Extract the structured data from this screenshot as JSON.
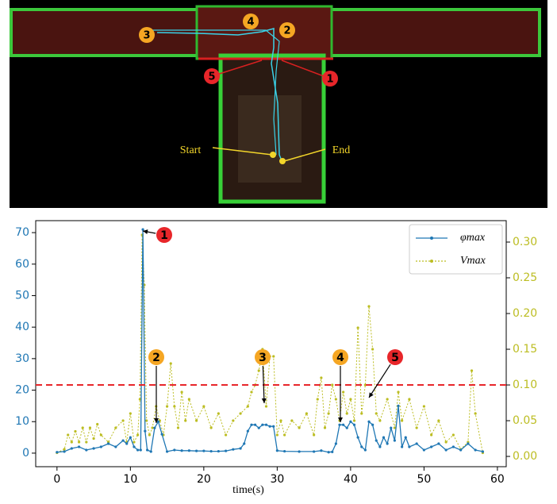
{
  "map": {
    "start_label": "Start",
    "end_label": "End",
    "markers": [
      "1",
      "2",
      "3",
      "4",
      "5"
    ]
  },
  "chart_data": {
    "type": "line",
    "x_label": "time(s)",
    "xlim": [
      -2.9,
      61.2
    ],
    "xticks": [
      0,
      10,
      20,
      30,
      40,
      50,
      60
    ],
    "ylim": [
      -4.3,
      73.8
    ],
    "yticks": [
      0,
      10,
      20,
      30,
      40,
      50,
      60,
      70
    ],
    "y2lim": [
      -0.0144,
      0.33
    ],
    "y2ticks": [
      {
        "value": 0,
        "label": "0.00"
      },
      0.05,
      {
        "value": 0.1,
        "label": "0.10"
      },
      0.15,
      {
        "value": 0.2,
        "label": "0.20"
      },
      0.25,
      {
        "value": 0.3,
        "label": "0.30"
      }
    ],
    "legend": "upper right",
    "threshold": {
      "value": 0.1,
      "axis": "y2",
      "color": "#e8262a"
    },
    "annotations": [
      "1",
      "2",
      "3",
      "4",
      "5"
    ],
    "series": [
      {
        "name": "φmax",
        "color": "#1f77b4",
        "axis": "y",
        "x": [
          0,
          1,
          2,
          3,
          4,
          5,
          6,
          7,
          8,
          9,
          9.5,
          10,
          10.5,
          11,
          11.4,
          11.7,
          12,
          12.3,
          12.8,
          13.3,
          13.8,
          14.3,
          15,
          16,
          17,
          18,
          19,
          20,
          21,
          22,
          23,
          24,
          25,
          25.5,
          26,
          26.5,
          27,
          27.5,
          28,
          28.5,
          29,
          29.5,
          30,
          31,
          33,
          35,
          36,
          37,
          37.5,
          38,
          38.5,
          39,
          39.5,
          40,
          40.5,
          41,
          41.5,
          42,
          42.5,
          43,
          43.5,
          44,
          44.5,
          45,
          45.5,
          46,
          46.5,
          47,
          47.5,
          48,
          49,
          50,
          51,
          52,
          53,
          54,
          55,
          56,
          57,
          58
        ],
        "values": [
          0.3,
          0.5,
          1.5,
          2,
          1,
          1.5,
          2,
          3,
          2,
          4,
          3,
          5,
          2,
          1,
          1,
          71,
          7,
          1,
          0.5,
          8,
          10,
          6,
          0.5,
          1,
          0.8,
          0.8,
          0.7,
          0.7,
          0.6,
          0.6,
          0.7,
          1.2,
          1.5,
          3,
          7,
          9,
          9,
          8,
          9,
          9,
          8.5,
          8.5,
          0.8,
          0.6,
          0.5,
          0.5,
          0.8,
          0.3,
          0.4,
          3,
          9,
          9,
          8,
          10,
          9,
          5,
          2,
          1,
          10,
          9,
          4,
          2,
          5,
          3,
          8,
          4,
          15,
          2,
          5,
          2,
          3,
          1,
          2,
          3,
          1,
          2,
          1,
          3,
          1,
          0.5
        ]
      },
      {
        "name": "Vmax",
        "color": "#bcbd22",
        "axis": "y2",
        "x": [
          0,
          1,
          1.5,
          2,
          2.5,
          3,
          3.5,
          4,
          4.5,
          5,
          5.5,
          6,
          7,
          8,
          9,
          9.5,
          10,
          10.5,
          11,
          11.3,
          11.6,
          11.9,
          12.2,
          12.6,
          13,
          13.5,
          14,
          14.5,
          15,
          15.5,
          16,
          16.5,
          17,
          17.5,
          18,
          19,
          20,
          21,
          22,
          23,
          24,
          25,
          26,
          26.5,
          27,
          27.5,
          28,
          28.5,
          29,
          29.5,
          30,
          30.5,
          31,
          32,
          33,
          34,
          35,
          35.5,
          36,
          36.5,
          37,
          37.5,
          38,
          38.5,
          39,
          39.5,
          40,
          40.5,
          41,
          41.5,
          42,
          42.5,
          43,
          43.5,
          44,
          45,
          46,
          46.5,
          47,
          48,
          49,
          50,
          51,
          52,
          53,
          54,
          55,
          56,
          56.5,
          57,
          58
        ],
        "values": [
          0.005,
          0.01,
          0.03,
          0.02,
          0.035,
          0.02,
          0.04,
          0.02,
          0.04,
          0.025,
          0.045,
          0.03,
          0.02,
          0.04,
          0.05,
          0.02,
          0.06,
          0.02,
          0.03,
          0.08,
          0.31,
          0.24,
          0.05,
          0.03,
          0.04,
          0.07,
          0.05,
          0.03,
          0.07,
          0.13,
          0.07,
          0.04,
          0.09,
          0.05,
          0.08,
          0.05,
          0.07,
          0.04,
          0.06,
          0.03,
          0.05,
          0.06,
          0.07,
          0.09,
          0.1,
          0.12,
          0.15,
          0.07,
          0.14,
          0.14,
          0.03,
          0.05,
          0.03,
          0.05,
          0.04,
          0.06,
          0.03,
          0.08,
          0.11,
          0.04,
          0.06,
          0.1,
          0.08,
          0.05,
          0.09,
          0.06,
          0.08,
          0.05,
          0.18,
          0.06,
          0.1,
          0.21,
          0.15,
          0.06,
          0.05,
          0.08,
          0.04,
          0.09,
          0.05,
          0.08,
          0.04,
          0.07,
          0.03,
          0.05,
          0.02,
          0.03,
          0.01,
          0.02,
          0.12,
          0.06,
          0.005
        ]
      }
    ]
  }
}
